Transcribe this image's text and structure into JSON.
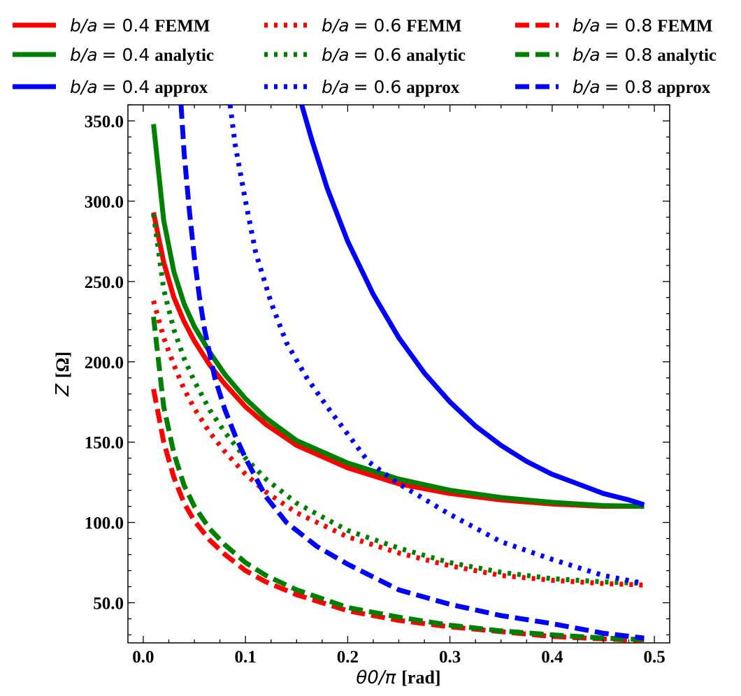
{
  "chart_data": {
    "type": "line",
    "title": "",
    "xlabel": {
      "math": "θ0/π",
      "unit": "[rad]"
    },
    "ylabel": {
      "math": "Z",
      "unit": "[Ω]"
    },
    "xlim": [
      -0.015,
      0.515
    ],
    "ylim": [
      25,
      360
    ],
    "xticks": [
      0.0,
      0.1,
      0.2,
      0.3,
      0.4,
      0.5
    ],
    "xtick_labels": [
      "0.0",
      "0.1",
      "0.2",
      "0.3",
      "0.4",
      "0.5"
    ],
    "yticks": [
      50,
      100,
      150,
      200,
      250,
      300,
      350
    ],
    "ytick_labels": [
      "50.0",
      "100.0",
      "150.0",
      "200.0",
      "250.0",
      "300.0",
      "350.0"
    ],
    "x": [
      0.01,
      0.02,
      0.03,
      0.04,
      0.05,
      0.065,
      0.08,
      0.1,
      0.12,
      0.15,
      0.2,
      0.25,
      0.3,
      0.35,
      0.4,
      0.45,
      0.49
    ],
    "series": [
      {
        "name": "b/a = 0.4 FEMM",
        "ratio": "0.4",
        "method": "FEMM",
        "color": "#ff0000",
        "dash": "solid",
        "values": [
          293,
          262,
          240,
          225,
          213,
          198,
          186,
          172,
          161,
          148,
          134,
          124,
          118,
          114,
          111.5,
          110,
          110
        ]
      },
      {
        "name": "b/a = 0.4 analytic",
        "ratio": "0.4",
        "method": "analytic",
        "color": "#008000",
        "dash": "solid",
        "values": [
          348,
          288,
          256,
          236,
          222,
          206,
          192,
          177,
          165,
          151,
          137,
          127,
          120,
          115.5,
          112.5,
          110.5,
          110
        ]
      },
      {
        "name": "b/a = 0.4 approx",
        "ratio": "0.4",
        "method": "approx",
        "color": "#0000ff",
        "dash": "solid",
        "x": [
          0.155,
          0.165,
          0.18,
          0.2,
          0.225,
          0.25,
          0.275,
          0.3,
          0.325,
          0.35,
          0.375,
          0.4,
          0.425,
          0.45,
          0.475,
          0.49
        ],
        "values": [
          360,
          338,
          308,
          275,
          242,
          215,
          193,
          175,
          160,
          148,
          138,
          130,
          124,
          118,
          114,
          111
        ]
      },
      {
        "name": "b/a = 0.6 FEMM",
        "ratio": "0.6",
        "method": "FEMM",
        "color": "#ff0000",
        "dash": "dotted",
        "values": [
          238,
          215,
          198,
          183,
          171,
          156,
          144,
          130,
          119,
          106,
          91,
          81,
          73,
          67,
          64,
          62,
          61
        ]
      },
      {
        "name": "b/a = 0.6 analytic",
        "ratio": "0.6",
        "method": "analytic",
        "color": "#008000",
        "dash": "dotted",
        "values": [
          292,
          245,
          220,
          202,
          188,
          170,
          156,
          140,
          127,
          112,
          95,
          84,
          75,
          69,
          65,
          63,
          62
        ]
      },
      {
        "name": "b/a = 0.6 approx",
        "ratio": "0.6",
        "method": "approx",
        "color": "#0000ff",
        "dash": "dotted",
        "x": [
          0.085,
          0.09,
          0.1,
          0.11,
          0.125,
          0.14,
          0.16,
          0.18,
          0.2,
          0.22,
          0.25,
          0.3,
          0.35,
          0.4,
          0.45,
          0.49
        ],
        "values": [
          360,
          335,
          300,
          268,
          237,
          212,
          190,
          172,
          155,
          138,
          124,
          105,
          88,
          77,
          67,
          62
        ]
      },
      {
        "name": "b/a = 0.8 FEMM",
        "ratio": "0.8",
        "method": "FEMM",
        "color": "#ff0000",
        "dash": "dashed",
        "values": [
          183,
          150,
          128,
          112,
          101,
          89,
          80,
          70,
          63,
          55,
          45,
          39,
          35,
          32,
          29,
          27.5,
          26.5
        ]
      },
      {
        "name": "b/a = 0.8 analytic",
        "ratio": "0.8",
        "method": "analytic",
        "color": "#008000",
        "dash": "dashed",
        "values": [
          228,
          172,
          143,
          123,
          110,
          96,
          86,
          75,
          67,
          58,
          47,
          41,
          36,
          32.5,
          30,
          28,
          27
        ]
      },
      {
        "name": "b/a = 0.8 approx",
        "ratio": "0.8",
        "method": "approx",
        "color": "#0000ff",
        "dash": "dashed",
        "x": [
          0.037,
          0.04,
          0.045,
          0.05,
          0.055,
          0.06,
          0.065,
          0.07,
          0.08,
          0.09,
          0.1,
          0.12,
          0.14,
          0.17,
          0.2,
          0.25,
          0.3,
          0.35,
          0.4,
          0.45,
          0.49
        ],
        "values": [
          360,
          330,
          295,
          265,
          240,
          220,
          205,
          190,
          170,
          154,
          140,
          116,
          100,
          85,
          74,
          58,
          49,
          42,
          37,
          31,
          28
        ]
      }
    ],
    "legend": {
      "placement": "top",
      "columns": 3
    }
  }
}
